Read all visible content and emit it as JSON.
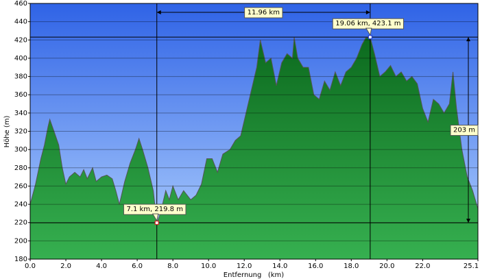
{
  "chart_data": {
    "type": "area",
    "x_label": "Entfernung   (km)",
    "y_label": "Höhe (m)",
    "x": [
      0.0,
      0.3,
      0.6,
      0.8,
      1.0,
      1.1,
      1.3,
      1.6,
      1.8,
      2.0,
      2.2,
      2.5,
      2.8,
      3.0,
      3.2,
      3.5,
      3.7,
      4.0,
      4.3,
      4.6,
      4.8,
      5.0,
      5.3,
      5.6,
      5.9,
      6.1,
      6.3,
      6.6,
      6.9,
      7.1,
      7.3,
      7.6,
      7.8,
      8.0,
      8.3,
      8.6,
      9.0,
      9.3,
      9.6,
      9.9,
      10.2,
      10.5,
      10.8,
      11.2,
      11.5,
      11.8,
      12.1,
      12.4,
      12.7,
      12.9,
      13.2,
      13.5,
      13.8,
      14.1,
      14.4,
      14.7,
      14.8,
      15.0,
      15.3,
      15.6,
      15.9,
      16.2,
      16.5,
      16.8,
      17.1,
      17.4,
      17.7,
      18.0,
      18.3,
      18.6,
      18.8,
      19.06,
      19.3,
      19.6,
      19.9,
      20.2,
      20.5,
      20.8,
      21.1,
      21.4,
      21.7,
      22.0,
      22.3,
      22.6,
      22.9,
      23.2,
      23.5,
      23.7,
      23.9,
      24.2,
      24.5,
      24.8,
      25.1
    ],
    "values": [
      240,
      262,
      290,
      305,
      325,
      333,
      322,
      305,
      280,
      262,
      270,
      275,
      270,
      278,
      268,
      280,
      265,
      270,
      272,
      268,
      255,
      240,
      265,
      285,
      300,
      312,
      300,
      280,
      255,
      219.8,
      230,
      255,
      245,
      260,
      245,
      255,
      245,
      250,
      262,
      290,
      290,
      275,
      295,
      300,
      310,
      315,
      340,
      365,
      390,
      420,
      395,
      400,
      370,
      395,
      405,
      400,
      423,
      400,
      390,
      390,
      360,
      355,
      375,
      365,
      385,
      370,
      385,
      390,
      400,
      415,
      422,
      423.1,
      405,
      380,
      385,
      392,
      380,
      385,
      375,
      380,
      372,
      345,
      330,
      355,
      350,
      340,
      350,
      385,
      345,
      300,
      270,
      255,
      235
    ],
    "color": "#1f8f35",
    "xlim": [
      0,
      25.1
    ],
    "ylim": [
      180,
      460
    ],
    "xticks": [
      {
        "value": 0,
        "label": "0.0"
      },
      {
        "value": 2,
        "label": "2.0"
      },
      {
        "value": 4,
        "label": "4.0"
      },
      {
        "value": 6,
        "label": "6.0"
      },
      {
        "value": 8,
        "label": "8.0"
      },
      {
        "value": 10,
        "label": "10.0"
      },
      {
        "value": 12,
        "label": "12.0"
      },
      {
        "value": 14,
        "label": "14.0"
      },
      {
        "value": 16,
        "label": "16.0"
      },
      {
        "value": 18,
        "label": "18.0"
      },
      {
        "value": 20,
        "label": "20.0"
      },
      {
        "value": 22,
        "label": "22.0"
      },
      {
        "value": 25.1,
        "label": "25.1"
      }
    ],
    "yticks": [
      180,
      200,
      220,
      240,
      260,
      280,
      300,
      320,
      340,
      360,
      380,
      400,
      420,
      440,
      460
    ],
    "grid": true,
    "markers": [
      {
        "x": 7.1,
        "y": 219.8,
        "label": "7.1 km, 219.8 m",
        "color": "#d02020"
      },
      {
        "x": 19.06,
        "y": 423.1,
        "label": "19.06 km, 423.1 m",
        "color": "#2040d0"
      }
    ],
    "span_label": "11.96 km",
    "rise_label": "203 m"
  }
}
